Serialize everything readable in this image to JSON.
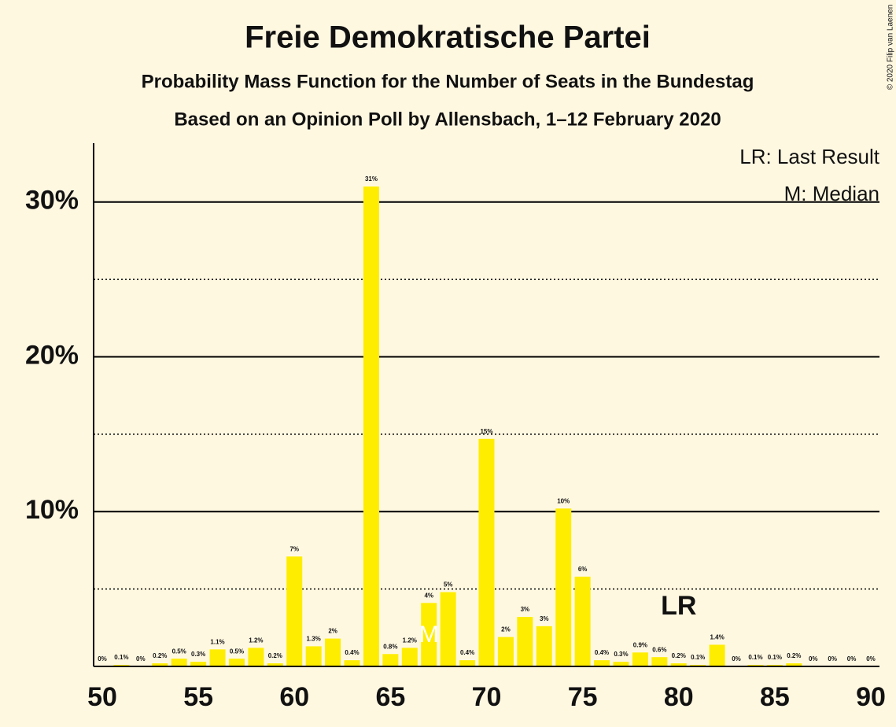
{
  "chart_data": {
    "type": "bar",
    "title": "Freie Demokratische Partei",
    "subtitle": "Probability Mass Function for the Number of Seats in the Bundestag",
    "subtitle2": "Based on an Opinion Poll by Allensbach, 1–12 February 2020",
    "copyright": "© 2020 Filip van Laenen",
    "legend_entries": [
      "LR: Last Result",
      "M: Median"
    ],
    "annotations": [
      {
        "text": "LR",
        "x": 80
      },
      {
        "text": "M",
        "x": 67
      }
    ],
    "color": "#ffed00",
    "x": [
      50,
      51,
      52,
      53,
      54,
      55,
      56,
      57,
      58,
      59,
      60,
      61,
      62,
      63,
      64,
      65,
      66,
      67,
      68,
      69,
      70,
      71,
      72,
      73,
      74,
      75,
      76,
      77,
      78,
      79,
      80,
      81,
      82,
      83,
      84,
      85,
      86,
      87,
      88,
      89,
      90
    ],
    "values": [
      0,
      0.1,
      0,
      0.2,
      0.5,
      0.3,
      1.1,
      0.5,
      1.2,
      0.2,
      7.1,
      1.3,
      1.8,
      0.4,
      31.0,
      0.8,
      1.2,
      4.1,
      4.8,
      0.4,
      14.7,
      1.9,
      3.2,
      2.6,
      10.2,
      5.8,
      0.4,
      0.3,
      0.9,
      0.6,
      0.2,
      0.1,
      1.4,
      0,
      0.1,
      0.1,
      0.2,
      0,
      0,
      0,
      0
    ],
    "value_labels": [
      "0%",
      "0.1%",
      "0%",
      "0.2%",
      "0.5%",
      "0.3%",
      "1.1%",
      "0.5%",
      "1.2%",
      "0.2%",
      "7%",
      "1.3%",
      "2%",
      "0.4%",
      "31%",
      "0.8%",
      "1.2%",
      "4%",
      "5%",
      "0.4%",
      "15%",
      "2%",
      "3%",
      "3%",
      "10%",
      "6%",
      "0.4%",
      "0.3%",
      "0.9%",
      "0.6%",
      "0.2%",
      "0.1%",
      "1.4%",
      "0%",
      "0.1%",
      "0.1%",
      "0.2%",
      "0%",
      "0%",
      "0%",
      "0%"
    ],
    "xlim": [
      49.55,
      90.45
    ],
    "xticks": [
      50,
      55,
      60,
      65,
      70,
      75,
      80,
      85,
      90
    ],
    "ylim": [
      0,
      33.8
    ],
    "yticks": [
      {
        "value": 10,
        "label": "10%"
      },
      {
        "value": 20,
        "label": "20%"
      },
      {
        "value": 30,
        "label": "30%"
      }
    ],
    "minor_yticks": [
      5,
      15,
      25
    ],
    "grid": true
  }
}
